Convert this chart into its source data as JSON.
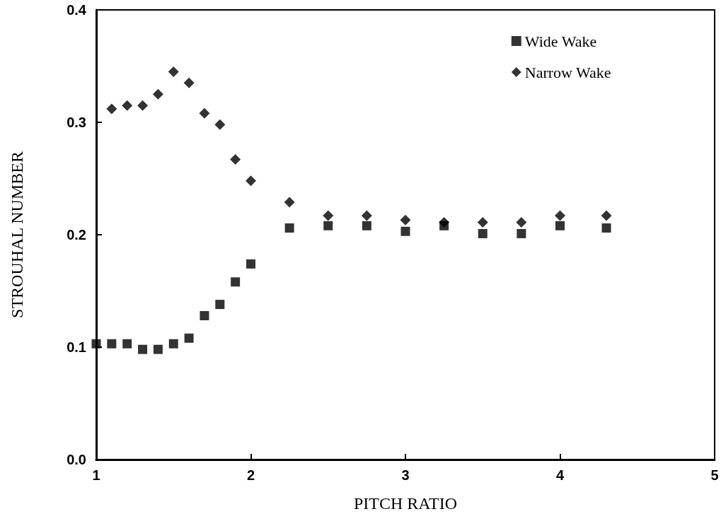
{
  "chart_data": {
    "type": "scatter",
    "xlabel": "PITCH RATIO",
    "ylabel": "STROUHAL NUMBER",
    "x": [
      1.0,
      1.1,
      1.2,
      1.3,
      1.4,
      1.5,
      1.6,
      1.7,
      1.8,
      1.9,
      2.0,
      2.25,
      2.5,
      2.75,
      3.0,
      3.25,
      3.5,
      3.75,
      4.0,
      4.3
    ],
    "series": [
      {
        "name": "Wide Wake",
        "color": "#000000",
        "marker": "square",
        "values": [
          0.103,
          0.103,
          0.103,
          0.098,
          0.098,
          0.103,
          0.108,
          0.128,
          0.138,
          0.158,
          0.174,
          0.206,
          0.208,
          0.208,
          0.203,
          0.208,
          0.201,
          0.201,
          0.208,
          0.206
        ]
      },
      {
        "name": "Narrow Wake",
        "color": "#000000",
        "marker": "diamond",
        "x": [
          1.1,
          1.2,
          1.3,
          1.4,
          1.5,
          1.6,
          1.7,
          1.8,
          1.9,
          2.0,
          2.25,
          2.5,
          2.75,
          3.0,
          3.25,
          3.5,
          3.75,
          4.0,
          4.3
        ],
        "values": [
          0.312,
          0.315,
          0.315,
          0.325,
          0.345,
          0.335,
          0.308,
          0.298,
          0.267,
          0.248,
          0.229,
          0.217,
          0.217,
          0.213,
          0.211,
          0.211,
          0.211,
          0.217,
          0.217
        ]
      }
    ],
    "xlim": [
      1,
      5
    ],
    "xticks": [
      1,
      2,
      3,
      4,
      5
    ],
    "ylim": [
      0,
      0.4
    ],
    "yticks": [
      {
        "value": 0,
        "label": "0.0"
      },
      {
        "value": 0.1,
        "label": "0.1"
      },
      {
        "value": 0.2,
        "label": "0.2"
      },
      {
        "value": 0.3,
        "label": "0.3"
      },
      {
        "value": 0.4,
        "label": "0.4"
      }
    ],
    "grid": false,
    "legend": "top right"
  }
}
